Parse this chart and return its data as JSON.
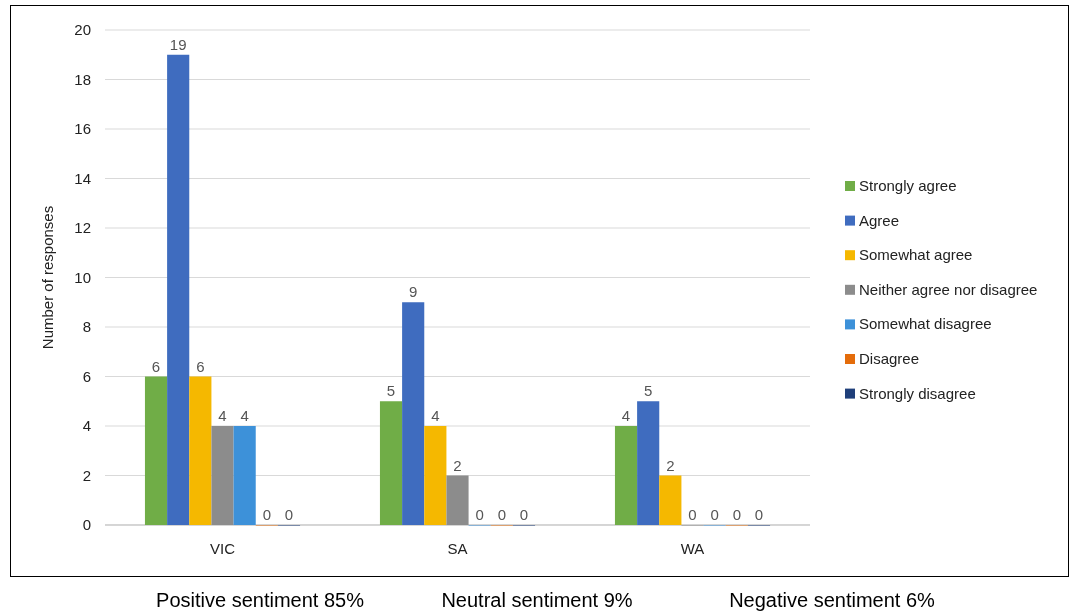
{
  "chart_data": {
    "type": "bar",
    "ylabel": "Number of responses",
    "categories": [
      "VIC",
      "SA",
      "WA"
    ],
    "series": [
      {
        "name": "Strongly agree",
        "color": "#70ad47",
        "values": [
          6,
          5,
          4
        ]
      },
      {
        "name": "Agree",
        "color": "#3f6cbf",
        "values": [
          19,
          9,
          5
        ]
      },
      {
        "name": "Somewhat agree",
        "color": "#f5b800",
        "values": [
          6,
          4,
          2
        ]
      },
      {
        "name": "Neither agree nor disagree",
        "color": "#8c8c8c",
        "values": [
          4,
          2,
          0
        ]
      },
      {
        "name": "Somewhat disagree",
        "color": "#3d91d9",
        "values": [
          4,
          0,
          0
        ]
      },
      {
        "name": "Disagree",
        "color": "#e46c0a",
        "values": [
          0,
          0,
          0
        ]
      },
      {
        "name": "Strongly disagree",
        "color": "#1f3f7a",
        "values": [
          0,
          0,
          0
        ]
      }
    ],
    "ylim": [
      0,
      20
    ],
    "yticks": [
      0,
      2,
      4,
      6,
      8,
      10,
      12,
      14,
      16,
      18,
      20
    ],
    "grid": "y",
    "legend": "right",
    "data_labels": true,
    "annotations": [
      "Positive sentiment  85%",
      "Neutral sentiment 9%",
      "Negative sentiment 6%"
    ]
  }
}
